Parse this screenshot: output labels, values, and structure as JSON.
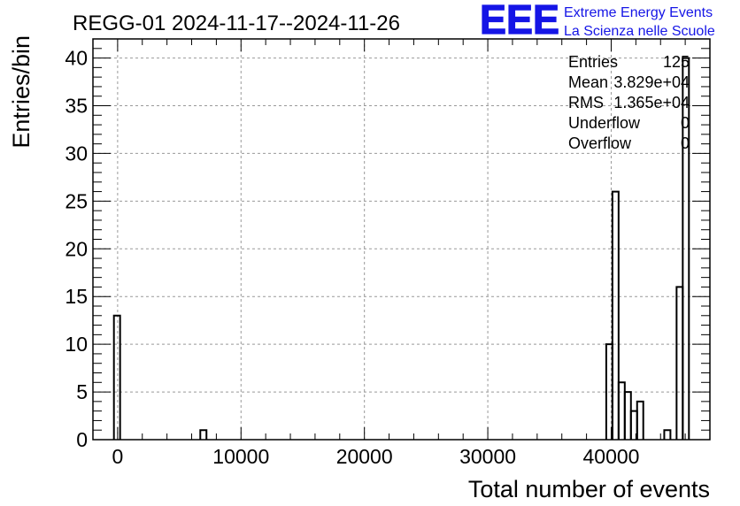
{
  "header": {
    "title": "REGG-01 2024-11-17--2024-11-26"
  },
  "logo": {
    "letters": "EEE",
    "line1": "Extreme Energy Events",
    "line2": "La Scienza nelle Scuole",
    "color": "#1515e6"
  },
  "stats_box": {
    "rows": [
      {
        "label": "Entries",
        "value": "125"
      },
      {
        "label": "Mean",
        "value": "3.829e+04"
      },
      {
        "label": "RMS",
        "value": "1.365e+04"
      },
      {
        "label": "Underflow",
        "value": "0"
      },
      {
        "label": "Overflow",
        "value": "0"
      }
    ]
  },
  "chart_data": {
    "type": "histogram",
    "title": "REGG-01 2024-11-17--2024-11-26",
    "xlabel": "Total number of events",
    "ylabel": "Entries/bin",
    "xlim": [
      -2000,
      48000
    ],
    "ylim": [
      0,
      42
    ],
    "x_ticks": [
      0,
      10000,
      20000,
      30000,
      40000
    ],
    "x_tick_labels": [
      "0",
      "10000",
      "20000",
      "30000",
      "40000"
    ],
    "y_ticks": [
      0,
      5,
      10,
      15,
      20,
      25,
      30,
      35,
      40
    ],
    "y_tick_labels": [
      "0",
      "5",
      "10",
      "15",
      "20",
      "25",
      "30",
      "35",
      "40"
    ],
    "grid": true,
    "line_color": "#000000",
    "bins": [
      {
        "x0": -300,
        "x1": 200,
        "count": 13
      },
      {
        "x0": 6700,
        "x1": 7200,
        "count": 1
      },
      {
        "x0": 39600,
        "x1": 40100,
        "count": 10
      },
      {
        "x0": 40100,
        "x1": 40600,
        "count": 26
      },
      {
        "x0": 40600,
        "x1": 41100,
        "count": 6
      },
      {
        "x0": 41100,
        "x1": 41600,
        "count": 5
      },
      {
        "x0": 41600,
        "x1": 42100,
        "count": 3
      },
      {
        "x0": 42100,
        "x1": 42600,
        "count": 4
      },
      {
        "x0": 44300,
        "x1": 44800,
        "count": 1
      },
      {
        "x0": 45300,
        "x1": 45800,
        "count": 16
      },
      {
        "x0": 45800,
        "x1": 46300,
        "count": 40
      }
    ]
  }
}
